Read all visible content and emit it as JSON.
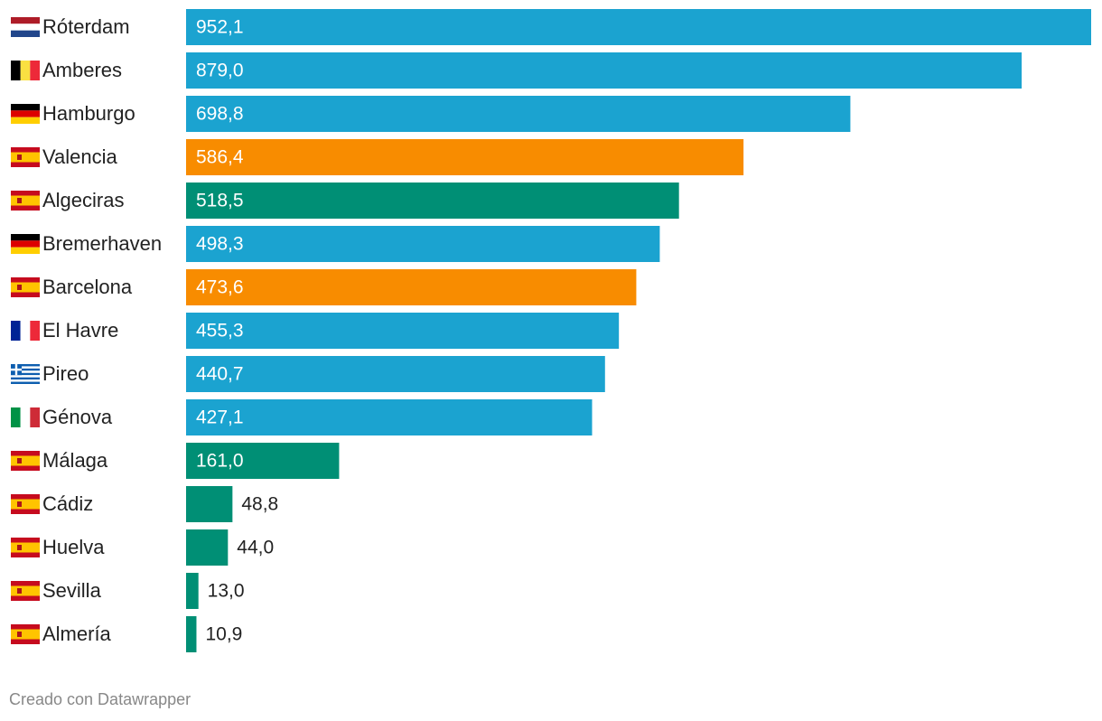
{
  "chart_data": {
    "type": "bar",
    "orientation": "horizontal",
    "categories": [
      "Róterdam",
      "Amberes",
      "Hamburgo",
      "Valencia",
      "Algeciras",
      "Bremerhaven",
      "Barcelona",
      "El Havre",
      "Pireo",
      "Génova",
      "Málaga",
      "Cádiz",
      "Huelva",
      "Sevilla",
      "Almería"
    ],
    "values": [
      952.1,
      879.0,
      698.8,
      586.4,
      518.5,
      498.3,
      473.6,
      455.3,
      440.7,
      427.1,
      161.0,
      48.8,
      44.0,
      13.0,
      10.9
    ],
    "value_labels": [
      "952,1",
      "879,0",
      "698,8",
      "586,4",
      "518,5",
      "498,3",
      "473,6",
      "455,3",
      "440,7",
      "427,1",
      "161,0",
      "48,8",
      "44,0",
      "13,0",
      "10,9"
    ],
    "colors": [
      "#1ba3d0",
      "#1ba3d0",
      "#1ba3d0",
      "#f88c00",
      "#008f75",
      "#1ba3d0",
      "#f88c00",
      "#1ba3d0",
      "#1ba3d0",
      "#1ba3d0",
      "#008f75",
      "#008f75",
      "#008f75",
      "#008f75",
      "#008f75"
    ],
    "credit": "Creado con Datawrapper"
  }
}
